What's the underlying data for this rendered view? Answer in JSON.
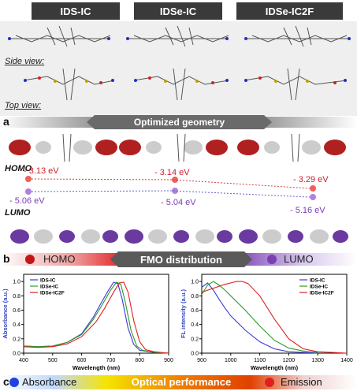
{
  "headers": [
    "IDS-IC",
    "IDSe-IC",
    "IDSe-IC2F"
  ],
  "panel_a": {
    "letter": "a",
    "side_view": "Side view:",
    "top_view": "Top view:",
    "banner": "Optimized geometry"
  },
  "fmo": {
    "homo_label": "HOMO",
    "lumo_label": "LUMO",
    "homo_energies": [
      "- 3.13 eV",
      "- 3.14 eV",
      "- 3.29 eV"
    ],
    "lumo_energies": [
      "- 5.06 eV",
      "- 5.04 eV",
      "- 5.16 eV"
    ]
  },
  "panel_b": {
    "letter": "b",
    "left": "HOMO",
    "center": "FMO distribution",
    "right": "LUMO"
  },
  "panel_c": {
    "letter": "c",
    "left": "Absorbance",
    "center": "Optical performance",
    "right": "Emission"
  },
  "colors": {
    "series1": "#3a3ad8",
    "series2": "#2a9a2a",
    "series3": "#e02020",
    "homo": "#d02020",
    "lumo": "#7a3fb0"
  },
  "chart_data": [
    {
      "type": "line",
      "xlabel": "Wavelength (nm)",
      "ylabel": "Absorbance (a.u.)",
      "xlim": [
        400,
        900
      ],
      "ylim": [
        0,
        1.1
      ],
      "xticks": [
        400,
        500,
        600,
        700,
        800,
        900
      ],
      "yticks": [
        0.0,
        0.2,
        0.4,
        0.6,
        0.8,
        1.0
      ],
      "series": [
        {
          "name": "IDS-IC",
          "x": [
            400,
            450,
            500,
            550,
            600,
            640,
            670,
            690,
            710,
            725,
            740,
            760,
            780,
            800,
            850,
            900
          ],
          "y": [
            0.1,
            0.09,
            0.1,
            0.15,
            0.27,
            0.5,
            0.72,
            0.86,
            0.99,
            0.97,
            0.75,
            0.35,
            0.12,
            0.04,
            0.01,
            0.0
          ]
        },
        {
          "name": "IDSe-IC",
          "x": [
            400,
            450,
            500,
            550,
            600,
            640,
            670,
            700,
            720,
            735,
            750,
            770,
            790,
            810,
            850,
            900
          ],
          "y": [
            0.1,
            0.09,
            0.1,
            0.15,
            0.26,
            0.47,
            0.67,
            0.88,
            0.99,
            0.96,
            0.72,
            0.32,
            0.1,
            0.04,
            0.01,
            0.0
          ]
        },
        {
          "name": "IDSe-IC2F",
          "x": [
            400,
            450,
            500,
            550,
            600,
            650,
            680,
            710,
            730,
            745,
            760,
            780,
            800,
            820,
            850,
            900
          ],
          "y": [
            0.09,
            0.08,
            0.09,
            0.13,
            0.23,
            0.44,
            0.63,
            0.85,
            0.98,
            0.99,
            0.85,
            0.45,
            0.16,
            0.05,
            0.02,
            0.0
          ]
        }
      ]
    },
    {
      "type": "line",
      "xlabel": "Wavelength (nm)",
      "ylabel": "FL intensity (a.u.)",
      "xlim": [
        900,
        1400
      ],
      "ylim": [
        0,
        1.1
      ],
      "xticks": [
        900,
        1000,
        1100,
        1200,
        1300,
        1400
      ],
      "yticks": [
        0.0,
        0.2,
        0.4,
        0.6,
        0.8,
        1.0
      ],
      "series": [
        {
          "name": "IDS-IC",
          "x": [
            900,
            920,
            940,
            960,
            980,
            1000,
            1050,
            1100,
            1150,
            1200,
            1250,
            1300
          ],
          "y": [
            0.92,
            0.98,
            0.88,
            0.75,
            0.63,
            0.52,
            0.32,
            0.16,
            0.06,
            0.02,
            0.01,
            0.0
          ]
        },
        {
          "name": "IDSe-IC",
          "x": [
            900,
            920,
            940,
            960,
            980,
            1000,
            1050,
            1100,
            1150,
            1200,
            1250,
            1300
          ],
          "y": [
            0.82,
            0.95,
            1.0,
            0.95,
            0.88,
            0.8,
            0.6,
            0.38,
            0.18,
            0.07,
            0.03,
            0.01
          ]
        },
        {
          "name": "IDSe-IC2F",
          "x": [
            900,
            950,
            980,
            1000,
            1020,
            1040,
            1060,
            1100,
            1150,
            1200,
            1250,
            1300,
            1350,
            1400
          ],
          "y": [
            0.85,
            0.92,
            0.96,
            0.98,
            1.0,
            1.0,
            0.97,
            0.8,
            0.48,
            0.2,
            0.06,
            0.02,
            0.01,
            0.0
          ]
        }
      ]
    }
  ]
}
